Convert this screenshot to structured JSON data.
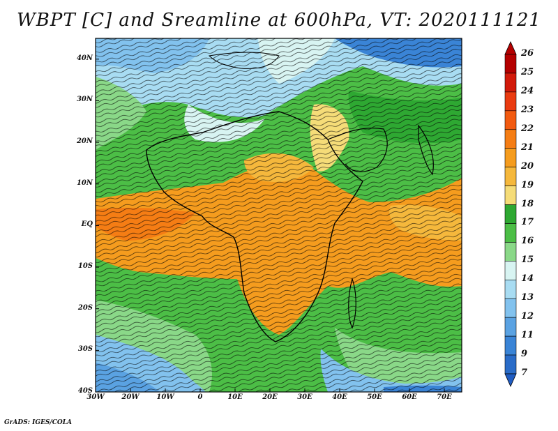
{
  "title": "WBPT [C] and Sreamline at 600hPa, VT: 2020111121",
  "credit": "GrADS: IGES/COLA",
  "map": {
    "lat_labels": [
      "40N",
      "30N",
      "20N",
      "10N",
      "EQ",
      "10S",
      "20S",
      "30S",
      "40S"
    ],
    "lat_values": [
      40,
      30,
      20,
      10,
      0,
      -10,
      -20,
      -30,
      -40
    ],
    "lon_labels": [
      "30W",
      "20W",
      "10W",
      "0",
      "10E",
      "20E",
      "30E",
      "40E",
      "50E",
      "60E",
      "70E"
    ],
    "lon_values": [
      -30,
      -20,
      -10,
      0,
      10,
      20,
      30,
      40,
      50,
      60,
      70
    ],
    "lon_range": [
      -30,
      75
    ],
    "lat_range": [
      -40,
      45
    ]
  },
  "colorbar": {
    "labels": [
      "26",
      "25",
      "24",
      "23",
      "22",
      "21",
      "20",
      "19",
      "18",
      "17",
      "16",
      "15",
      "14",
      "13",
      "12",
      "11",
      "9",
      "7"
    ],
    "colors": [
      "#b40000",
      "#d21a0a",
      "#ea3b10",
      "#f25a10",
      "#f57d14",
      "#f59c1e",
      "#f5b83c",
      "#f5dc78",
      "#2ea832",
      "#4cbe46",
      "#8ad888",
      "#d8f4f2",
      "#a8dcf2",
      "#82c2ee",
      "#5aa2e2",
      "#3a84d6",
      "#2a6cc8"
    ]
  }
}
